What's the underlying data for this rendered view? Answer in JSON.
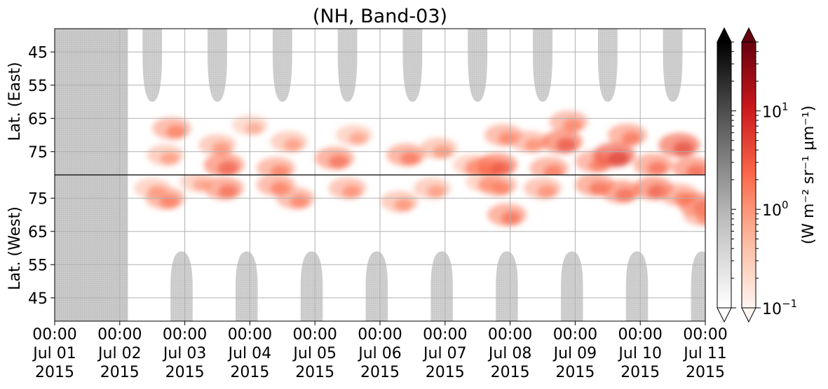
{
  "chart_data": {
    "type": "heatmap",
    "title": "(NH, Band-03)",
    "x_axis": {
      "start": "2015-07-01 00:00",
      "end": "2015-07-11 00:00",
      "ticks": [
        {
          "time": "00:00",
          "day": "Jul 01",
          "year": "2015"
        },
        {
          "time": "00:00",
          "day": "Jul 02",
          "year": "2015"
        },
        {
          "time": "00:00",
          "day": "Jul 03",
          "year": "2015"
        },
        {
          "time": "00:00",
          "day": "Jul 04",
          "year": "2015"
        },
        {
          "time": "00:00",
          "day": "Jul 05",
          "year": "2015"
        },
        {
          "time": "00:00",
          "day": "Jul 06",
          "year": "2015"
        },
        {
          "time": "00:00",
          "day": "Jul 07",
          "year": "2015"
        },
        {
          "time": "00:00",
          "day": "Jul 08",
          "year": "2015"
        },
        {
          "time": "00:00",
          "day": "Jul 09",
          "year": "2015"
        },
        {
          "time": "00:00",
          "day": "Jul 10",
          "year": "2015"
        },
        {
          "time": "00:00",
          "day": "Jul 11",
          "year": "2015"
        }
      ]
    },
    "panels": [
      {
        "ylabel": "Lat. (East)",
        "lat_range": [
          38,
          82
        ],
        "tick_values": [
          45,
          55,
          65,
          75
        ],
        "lat_increases": "down"
      },
      {
        "ylabel": "Lat. (West)",
        "lat_range": [
          38,
          82
        ],
        "tick_values": [
          75,
          65,
          55,
          45
        ],
        "lat_increases": "up"
      }
    ],
    "colorbars": [
      {
        "name": "Greys",
        "scale": "log",
        "range": [
          0.1,
          50
        ],
        "extend": "both",
        "colors": [
          "#ffffff",
          "#bdbdbd",
          "#636363",
          "#000000"
        ]
      },
      {
        "name": "Reds",
        "scale": "log",
        "range": [
          0.1,
          50
        ],
        "extend": "both",
        "tick_labels": [
          {
            "base": "10",
            "exp": "−1",
            "value": 0.1
          },
          {
            "base": "10",
            "exp": "0",
            "value": 1
          },
          {
            "base": "10",
            "exp": "1",
            "value": 10
          }
        ],
        "colors": [
          "#fff5f0",
          "#fcbba1",
          "#fb6a4a",
          "#cb181d",
          "#67000d"
        ]
      }
    ],
    "colorbar_label": "(W m⁻² sr⁻¹ μm⁻¹)",
    "no_data_until": "2015-07-02 03:00",
    "grid": true,
    "grey_regions": {
      "east": [
        {
          "center_day": 1.5,
          "half_width_days": 0.15,
          "lat_top": 38,
          "lat_bottom": 60
        },
        {
          "center_day": 2.5,
          "half_width_days": 0.15,
          "lat_top": 38,
          "lat_bottom": 60
        },
        {
          "center_day": 3.5,
          "half_width_days": 0.15,
          "lat_top": 38,
          "lat_bottom": 60
        },
        {
          "center_day": 4.5,
          "half_width_days": 0.15,
          "lat_top": 38,
          "lat_bottom": 60
        },
        {
          "center_day": 5.5,
          "half_width_days": 0.15,
          "lat_top": 38,
          "lat_bottom": 60
        },
        {
          "center_day": 6.5,
          "half_width_days": 0.15,
          "lat_top": 38,
          "lat_bottom": 60
        },
        {
          "center_day": 7.5,
          "half_width_days": 0.15,
          "lat_top": 38,
          "lat_bottom": 60
        },
        {
          "center_day": 8.5,
          "half_width_days": 0.15,
          "lat_top": 38,
          "lat_bottom": 60
        },
        {
          "center_day": 9.5,
          "half_width_days": 0.15,
          "lat_top": 38,
          "lat_bottom": 60
        }
      ],
      "west": [
        {
          "center_day": 1.95,
          "half_width_days": 0.17,
          "lat_top": 59,
          "lat_bottom": 38
        },
        {
          "center_day": 2.95,
          "half_width_days": 0.17,
          "lat_top": 59,
          "lat_bottom": 38
        },
        {
          "center_day": 3.95,
          "half_width_days": 0.17,
          "lat_top": 59,
          "lat_bottom": 38
        },
        {
          "center_day": 4.95,
          "half_width_days": 0.17,
          "lat_top": 59,
          "lat_bottom": 38
        },
        {
          "center_day": 5.95,
          "half_width_days": 0.17,
          "lat_top": 59,
          "lat_bottom": 38
        },
        {
          "center_day": 6.95,
          "half_width_days": 0.17,
          "lat_top": 59,
          "lat_bottom": 38
        },
        {
          "center_day": 7.95,
          "half_width_days": 0.17,
          "lat_top": 59,
          "lat_bottom": 38
        },
        {
          "center_day": 8.95,
          "half_width_days": 0.17,
          "lat_top": 59,
          "lat_bottom": 38
        },
        {
          "center_day": 9.95,
          "half_width_days": 0.17,
          "lat_top": 59,
          "lat_bottom": 38
        }
      ]
    },
    "intensity_blobs": {
      "east": [
        {
          "day": 1.8,
          "lat": 68,
          "val": 1.2
        },
        {
          "day": 1.7,
          "lat": 76,
          "val": 0.7
        },
        {
          "day": 2.6,
          "lat": 79,
          "val": 2.0
        },
        {
          "day": 2.5,
          "lat": 73,
          "val": 0.8
        },
        {
          "day": 3.0,
          "lat": 67,
          "val": 0.5
        },
        {
          "day": 3.4,
          "lat": 80,
          "val": 1.2
        },
        {
          "day": 3.6,
          "lat": 72,
          "val": 0.7
        },
        {
          "day": 4.3,
          "lat": 77,
          "val": 1.5
        },
        {
          "day": 4.6,
          "lat": 70,
          "val": 0.6
        },
        {
          "day": 5.4,
          "lat": 76,
          "val": 1.4
        },
        {
          "day": 5.9,
          "lat": 74,
          "val": 0.8
        },
        {
          "day": 6.4,
          "lat": 79,
          "val": 0.6
        },
        {
          "day": 6.6,
          "lat": 80,
          "val": 1.4
        },
        {
          "day": 6.8,
          "lat": 79,
          "val": 2.2
        },
        {
          "day": 6.9,
          "lat": 70,
          "val": 1.1
        },
        {
          "day": 7.3,
          "lat": 72,
          "val": 0.9
        },
        {
          "day": 7.6,
          "lat": 80,
          "val": 1.3
        },
        {
          "day": 7.8,
          "lat": 72,
          "val": 2.4
        },
        {
          "day": 7.9,
          "lat": 66,
          "val": 1.1
        },
        {
          "day": 8.3,
          "lat": 78,
          "val": 1.3
        },
        {
          "day": 8.6,
          "lat": 76,
          "val": 3.5
        },
        {
          "day": 8.8,
          "lat": 70,
          "val": 1.4
        },
        {
          "day": 9.2,
          "lat": 79,
          "val": 1.5
        },
        {
          "day": 9.6,
          "lat": 73,
          "val": 2.8
        },
        {
          "day": 9.8,
          "lat": 80,
          "val": 1.8
        }
      ],
      "west": [
        {
          "day": 1.7,
          "lat": 75,
          "val": 1.3
        },
        {
          "day": 1.5,
          "lat": 78,
          "val": 0.6
        },
        {
          "day": 2.6,
          "lat": 78,
          "val": 1.6
        },
        {
          "day": 2.2,
          "lat": 80,
          "val": 0.6
        },
        {
          "day": 3.4,
          "lat": 79,
          "val": 1.2
        },
        {
          "day": 3.7,
          "lat": 75,
          "val": 1.1
        },
        {
          "day": 4.5,
          "lat": 78,
          "val": 0.9
        },
        {
          "day": 5.3,
          "lat": 74,
          "val": 0.8
        },
        {
          "day": 5.8,
          "lat": 78,
          "val": 0.7
        },
        {
          "day": 6.6,
          "lat": 80,
          "val": 0.6
        },
        {
          "day": 6.8,
          "lat": 79,
          "val": 1.2
        },
        {
          "day": 6.95,
          "lat": 70,
          "val": 1.5
        },
        {
          "day": 7.5,
          "lat": 78,
          "val": 0.9
        },
        {
          "day": 8.3,
          "lat": 79,
          "val": 1.5
        },
        {
          "day": 8.7,
          "lat": 77,
          "val": 1.7
        },
        {
          "day": 9.2,
          "lat": 78,
          "val": 2.0
        },
        {
          "day": 9.6,
          "lat": 76,
          "val": 1.2
        },
        {
          "day": 9.9,
          "lat": 73,
          "val": 2.2
        },
        {
          "day": 9.95,
          "lat": 70,
          "val": 1.0
        }
      ]
    }
  }
}
